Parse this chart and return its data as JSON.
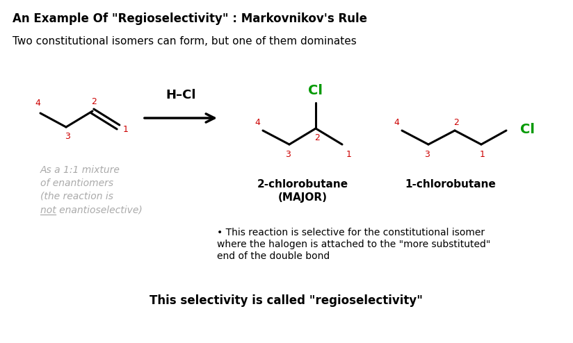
{
  "title": "An Example Of \"Regioselectivity\" : Markovnikov's Rule",
  "subtitle": "Two constitutional isomers can form, but one of them dominates",
  "hcl_label": "H–Cl",
  "black_color": "#000000",
  "red_color": "#cc0000",
  "green_color": "#009900",
  "gray_color": "#aaaaaa",
  "bg_color": "#ffffff",
  "major_label": "2-chlorobutane",
  "major_sublabel": "(MAJOR)",
  "minor_label": "1-chlorobutane",
  "italic_text_lines": [
    "As a 1:1 mixture",
    "of enantiomers",
    "(the reaction is",
    "not enantioselective)"
  ],
  "bullet_line1": "• This reaction is selective for the constitutional isomer",
  "bullet_line2": "where the halogen is attached to the \"more substituted\"",
  "bullet_line3": "end of the double bond",
  "footer": "This selectivity is called \"regioselectivity\""
}
